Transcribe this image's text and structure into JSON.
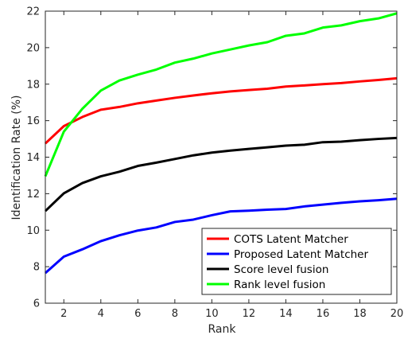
{
  "chart_data": {
    "type": "line",
    "title": "",
    "xlabel": "Rank",
    "ylabel": "Identification Rate (%)",
    "xlim": [
      1,
      20
    ],
    "ylim": [
      6,
      22
    ],
    "xticks": [
      2,
      4,
      6,
      8,
      10,
      12,
      14,
      16,
      18,
      20
    ],
    "yticks": [
      6,
      8,
      10,
      12,
      14,
      16,
      18,
      20,
      22
    ],
    "grid": false,
    "legend_position": "bottom-right",
    "x": [
      1,
      2,
      3,
      4,
      5,
      6,
      7,
      8,
      9,
      10,
      11,
      12,
      13,
      14,
      15,
      16,
      17,
      18,
      19,
      20
    ],
    "series": [
      {
        "name": "COTS Latent Matcher",
        "color": "#ff0000",
        "values": [
          14.75,
          15.7,
          16.2,
          16.6,
          16.75,
          16.95,
          17.1,
          17.25,
          17.38,
          17.5,
          17.6,
          17.68,
          17.75,
          17.87,
          17.93,
          18.0,
          18.06,
          18.15,
          18.23,
          18.32
        ]
      },
      {
        "name": "Proposed Latent Matcher",
        "color": "#0000ff",
        "values": [
          7.65,
          8.55,
          8.95,
          9.4,
          9.72,
          9.98,
          10.15,
          10.45,
          10.58,
          10.82,
          11.03,
          11.07,
          11.12,
          11.16,
          11.3,
          11.4,
          11.5,
          11.58,
          11.64,
          11.72
        ]
      },
      {
        "name": "Score level fusion",
        "color": "#000000",
        "values": [
          11.05,
          12.02,
          12.58,
          12.95,
          13.2,
          13.52,
          13.7,
          13.9,
          14.1,
          14.25,
          14.36,
          14.45,
          14.54,
          14.63,
          14.68,
          14.82,
          14.85,
          14.93,
          15.0,
          15.05
        ]
      },
      {
        "name": "Rank level fusion",
        "color": "#00ff00",
        "values": [
          12.95,
          15.4,
          16.65,
          17.65,
          18.2,
          18.52,
          18.8,
          19.18,
          19.4,
          19.68,
          19.9,
          20.12,
          20.3,
          20.65,
          20.78,
          21.1,
          21.22,
          21.45,
          21.6,
          21.88
        ]
      }
    ]
  }
}
